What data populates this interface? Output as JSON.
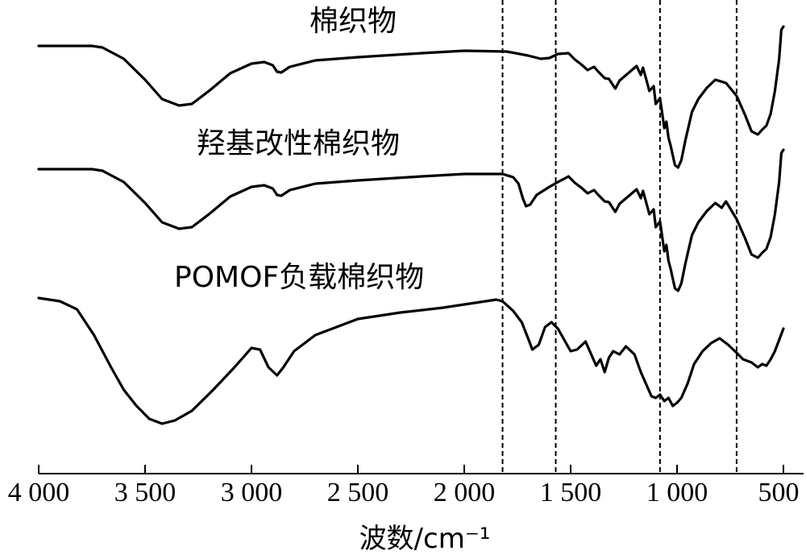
{
  "chart_data": {
    "type": "line",
    "xlabel": "波数/cm⁻¹",
    "ylabel": "",
    "x_reversed": true,
    "xlim": [
      4000,
      500
    ],
    "xticks": [
      4000,
      3500,
      3000,
      2500,
      2000,
      1500,
      1000,
      500
    ],
    "xtick_labels": [
      "4 000",
      "3 500",
      "3 000",
      "2 500",
      "2 000",
      "1 500",
      "1 000",
      "500"
    ],
    "grid": false,
    "legend": "none",
    "reference_lines_x": [
      1820,
      1570,
      1080,
      720
    ],
    "series": [
      {
        "name": "棉织物",
        "points": [
          [
            4000,
            0
          ],
          [
            3750,
            0
          ],
          [
            3700,
            -0.2
          ],
          [
            3600,
            -1.6
          ],
          [
            3500,
            -4.2
          ],
          [
            3420,
            -6.6
          ],
          [
            3340,
            -7.4
          ],
          [
            3280,
            -7.2
          ],
          [
            3200,
            -5.6
          ],
          [
            3100,
            -3.4
          ],
          [
            3000,
            -2.2
          ],
          [
            2940,
            -2.0
          ],
          [
            2900,
            -2.4
          ],
          [
            2880,
            -3.2
          ],
          [
            2860,
            -3.3
          ],
          [
            2820,
            -2.6
          ],
          [
            2700,
            -1.8
          ],
          [
            2500,
            -1.4
          ],
          [
            2200,
            -0.9
          ],
          [
            2000,
            -0.6
          ],
          [
            1800,
            -0.7
          ],
          [
            1700,
            -1.2
          ],
          [
            1640,
            -1.6
          ],
          [
            1600,
            -1.5
          ],
          [
            1560,
            -1.0
          ],
          [
            1510,
            -0.9
          ],
          [
            1480,
            -1.7
          ],
          [
            1450,
            -2.3
          ],
          [
            1420,
            -3.0
          ],
          [
            1390,
            -2.6
          ],
          [
            1370,
            -3.2
          ],
          [
            1340,
            -4.0
          ],
          [
            1320,
            -4.1
          ],
          [
            1290,
            -5.3
          ],
          [
            1270,
            -4.3
          ],
          [
            1230,
            -3.4
          ],
          [
            1190,
            -2.5
          ],
          [
            1170,
            -3.6
          ],
          [
            1160,
            -2.7
          ],
          [
            1130,
            -5.6
          ],
          [
            1110,
            -5.0
          ],
          [
            1100,
            -7.2
          ],
          [
            1080,
            -6.5
          ],
          [
            1060,
            -10.2
          ],
          [
            1050,
            -9.4
          ],
          [
            1040,
            -11.4
          ],
          [
            1030,
            -12.4
          ],
          [
            1010,
            -14.8
          ],
          [
            995,
            -15.1
          ],
          [
            980,
            -14.2
          ],
          [
            960,
            -11.6
          ],
          [
            930,
            -8.2
          ],
          [
            900,
            -6.6
          ],
          [
            860,
            -5.2
          ],
          [
            820,
            -4.2
          ],
          [
            770,
            -4.6
          ],
          [
            720,
            -6.2
          ],
          [
            680,
            -8.6
          ],
          [
            650,
            -10.6
          ],
          [
            620,
            -11.0
          ],
          [
            600,
            -10.4
          ],
          [
            580,
            -9.9
          ],
          [
            560,
            -8.4
          ],
          [
            540,
            -5.6
          ],
          [
            520,
            -1.6
          ],
          [
            510,
            2.0
          ],
          [
            500,
            2.4
          ]
        ]
      },
      {
        "name": "羟基改性棉织物",
        "points": [
          [
            4000,
            0
          ],
          [
            3750,
            0
          ],
          [
            3700,
            -0.2
          ],
          [
            3600,
            -1.6
          ],
          [
            3500,
            -4.2
          ],
          [
            3420,
            -6.6
          ],
          [
            3340,
            -7.4
          ],
          [
            3280,
            -7.2
          ],
          [
            3200,
            -5.6
          ],
          [
            3100,
            -3.4
          ],
          [
            3000,
            -2.2
          ],
          [
            2940,
            -2.0
          ],
          [
            2900,
            -2.4
          ],
          [
            2880,
            -3.2
          ],
          [
            2860,
            -3.3
          ],
          [
            2820,
            -2.6
          ],
          [
            2700,
            -1.8
          ],
          [
            2500,
            -1.4
          ],
          [
            2200,
            -0.9
          ],
          [
            2000,
            -0.6
          ],
          [
            1820,
            -0.6
          ],
          [
            1770,
            -1.0
          ],
          [
            1745,
            -1.8
          ],
          [
            1725,
            -3.6
          ],
          [
            1710,
            -4.6
          ],
          [
            1690,
            -4.4
          ],
          [
            1660,
            -3.2
          ],
          [
            1600,
            -2.2
          ],
          [
            1560,
            -1.6
          ],
          [
            1510,
            -0.9
          ],
          [
            1480,
            -1.7
          ],
          [
            1450,
            -2.3
          ],
          [
            1420,
            -3.0
          ],
          [
            1390,
            -2.6
          ],
          [
            1370,
            -3.2
          ],
          [
            1340,
            -4.0
          ],
          [
            1320,
            -4.1
          ],
          [
            1290,
            -5.3
          ],
          [
            1270,
            -4.3
          ],
          [
            1230,
            -3.4
          ],
          [
            1190,
            -2.5
          ],
          [
            1170,
            -3.6
          ],
          [
            1160,
            -2.7
          ],
          [
            1130,
            -5.6
          ],
          [
            1110,
            -5.0
          ],
          [
            1100,
            -7.2
          ],
          [
            1080,
            -6.5
          ],
          [
            1060,
            -10.2
          ],
          [
            1050,
            -9.4
          ],
          [
            1040,
            -11.4
          ],
          [
            1030,
            -12.4
          ],
          [
            1010,
            -14.8
          ],
          [
            995,
            -15.1
          ],
          [
            980,
            -14.2
          ],
          [
            960,
            -11.6
          ],
          [
            930,
            -8.2
          ],
          [
            900,
            -6.6
          ],
          [
            860,
            -5.2
          ],
          [
            820,
            -4.2
          ],
          [
            790,
            -4.8
          ],
          [
            770,
            -4.0
          ],
          [
            720,
            -6.2
          ],
          [
            680,
            -8.6
          ],
          [
            650,
            -10.6
          ],
          [
            620,
            -11.0
          ],
          [
            600,
            -10.4
          ],
          [
            580,
            -9.9
          ],
          [
            560,
            -8.4
          ],
          [
            540,
            -5.6
          ],
          [
            520,
            -1.6
          ],
          [
            510,
            2.0
          ],
          [
            500,
            2.4
          ]
        ]
      },
      {
        "name": "POMOF负载棉织物",
        "points": [
          [
            4000,
            0
          ],
          [
            3900,
            -0.4
          ],
          [
            3820,
            -1.4
          ],
          [
            3740,
            -4.6
          ],
          [
            3660,
            -8.6
          ],
          [
            3600,
            -11.4
          ],
          [
            3540,
            -13.4
          ],
          [
            3480,
            -15.0
          ],
          [
            3420,
            -15.6
          ],
          [
            3360,
            -15.2
          ],
          [
            3280,
            -14.0
          ],
          [
            3180,
            -11.4
          ],
          [
            3080,
            -8.6
          ],
          [
            3000,
            -6.2
          ],
          [
            2960,
            -6.4
          ],
          [
            2920,
            -8.6
          ],
          [
            2880,
            -9.6
          ],
          [
            2850,
            -8.6
          ],
          [
            2800,
            -6.6
          ],
          [
            2700,
            -4.6
          ],
          [
            2500,
            -2.6
          ],
          [
            2300,
            -1.8
          ],
          [
            2100,
            -1.2
          ],
          [
            1950,
            -0.6
          ],
          [
            1850,
            -0.2
          ],
          [
            1820,
            -0.4
          ],
          [
            1770,
            -1.6
          ],
          [
            1730,
            -3.0
          ],
          [
            1700,
            -5.0
          ],
          [
            1680,
            -6.4
          ],
          [
            1650,
            -5.8
          ],
          [
            1620,
            -3.6
          ],
          [
            1590,
            -3.0
          ],
          [
            1560,
            -3.8
          ],
          [
            1530,
            -5.2
          ],
          [
            1500,
            -6.6
          ],
          [
            1470,
            -6.4
          ],
          [
            1430,
            -5.4
          ],
          [
            1400,
            -7.2
          ],
          [
            1380,
            -8.4
          ],
          [
            1360,
            -7.6
          ],
          [
            1340,
            -9.2
          ],
          [
            1320,
            -7.4
          ],
          [
            1300,
            -6.6
          ],
          [
            1270,
            -7.0
          ],
          [
            1240,
            -6.0
          ],
          [
            1200,
            -7.0
          ],
          [
            1170,
            -9.2
          ],
          [
            1140,
            -11.0
          ],
          [
            1120,
            -12.2
          ],
          [
            1100,
            -12.4
          ],
          [
            1080,
            -12.0
          ],
          [
            1060,
            -12.8
          ],
          [
            1040,
            -12.4
          ],
          [
            1020,
            -13.4
          ],
          [
            1000,
            -13.0
          ],
          [
            980,
            -12.4
          ],
          [
            950,
            -10.6
          ],
          [
            920,
            -8.2
          ],
          [
            880,
            -6.6
          ],
          [
            840,
            -5.6
          ],
          [
            800,
            -5.0
          ],
          [
            760,
            -5.8
          ],
          [
            720,
            -6.8
          ],
          [
            690,
            -7.6
          ],
          [
            650,
            -8.0
          ],
          [
            620,
            -8.6
          ],
          [
            600,
            -8.2
          ],
          [
            580,
            -8.4
          ],
          [
            560,
            -7.6
          ],
          [
            540,
            -6.6
          ],
          [
            520,
            -5.2
          ],
          [
            500,
            -3.8
          ]
        ]
      }
    ]
  }
}
